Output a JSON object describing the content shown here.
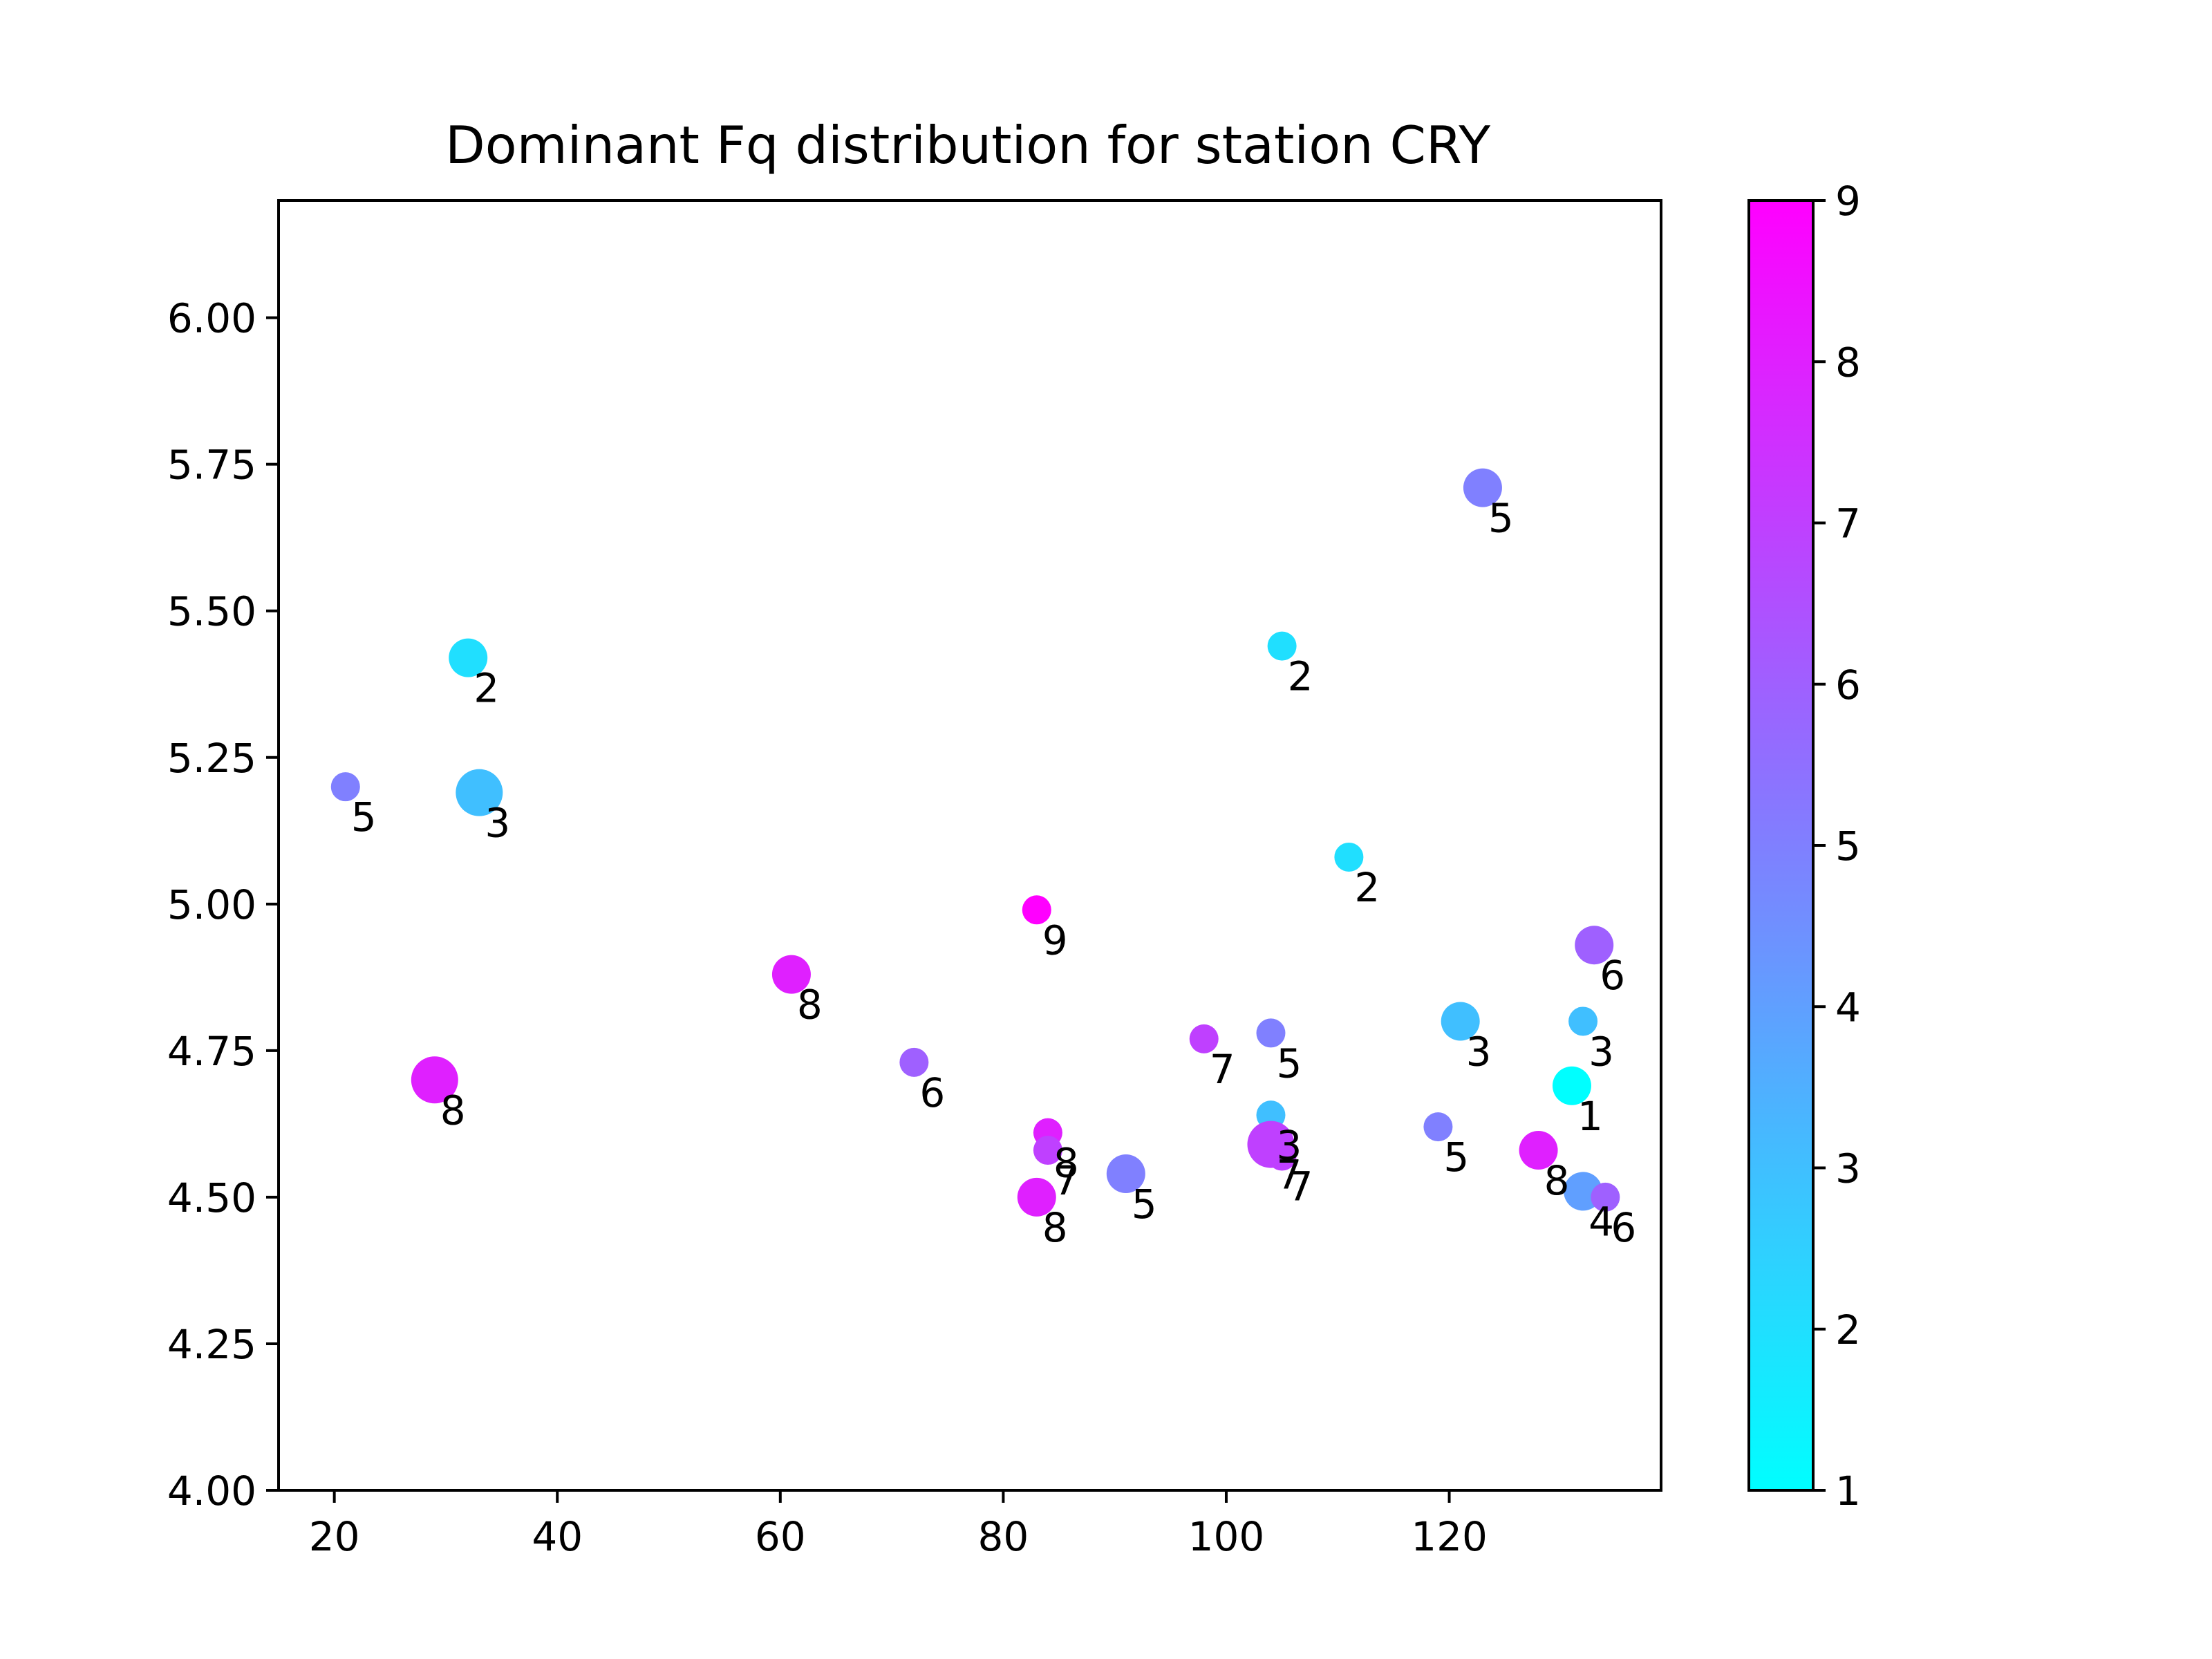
{
  "chart_data": {
    "type": "scatter",
    "title": "Dominant Fq distribution for station CRY",
    "xlabel": "",
    "ylabel": "",
    "xlim": [
      15,
      139
    ],
    "ylim": [
      4.0,
      6.2
    ],
    "xticks": [
      20,
      40,
      60,
      80,
      100,
      120
    ],
    "yticks": [
      4.0,
      4.25,
      4.5,
      4.75,
      5.0,
      5.25,
      5.5,
      5.75,
      6.0
    ],
    "ytick_labels": [
      "4.00",
      "4.25",
      "4.50",
      "4.75",
      "5.00",
      "5.25",
      "5.50",
      "5.75",
      "6.00"
    ],
    "colorbar": {
      "range": [
        1,
        9
      ],
      "ticks": [
        1,
        2,
        3,
        4,
        5,
        6,
        7,
        8,
        9
      ],
      "colormap": "cool",
      "color_low": "#00ffff",
      "color_high": "#ff00ff"
    },
    "points": [
      {
        "x": 123,
        "y": 5.71,
        "value": 5,
        "size": 2
      },
      {
        "x": 32,
        "y": 5.42,
        "value": 2,
        "size": 2
      },
      {
        "x": 105,
        "y": 5.44,
        "value": 2,
        "size": 1
      },
      {
        "x": 21,
        "y": 5.2,
        "value": 5,
        "size": 1
      },
      {
        "x": 33,
        "y": 5.19,
        "value": 3,
        "size": 3
      },
      {
        "x": 111,
        "y": 5.08,
        "value": 2,
        "size": 1
      },
      {
        "x": 83,
        "y": 4.99,
        "value": 9,
        "size": 1
      },
      {
        "x": 133,
        "y": 4.93,
        "value": 6,
        "size": 2
      },
      {
        "x": 61,
        "y": 4.88,
        "value": 8,
        "size": 2
      },
      {
        "x": 121,
        "y": 4.8,
        "value": 3,
        "size": 2
      },
      {
        "x": 132,
        "y": 4.8,
        "value": 3,
        "size": 1
      },
      {
        "x": 104,
        "y": 4.78,
        "value": 5,
        "size": 1
      },
      {
        "x": 98,
        "y": 4.77,
        "value": 7,
        "size": 1
      },
      {
        "x": 72,
        "y": 4.73,
        "value": 6,
        "size": 1
      },
      {
        "x": 29,
        "y": 4.7,
        "value": 8,
        "size": 3
      },
      {
        "x": 131,
        "y": 4.69,
        "value": 1,
        "size": 2
      },
      {
        "x": 104,
        "y": 4.64,
        "value": 3,
        "size": 1
      },
      {
        "x": 119,
        "y": 4.62,
        "value": 5,
        "size": 1
      },
      {
        "x": 84,
        "y": 4.61,
        "value": 8,
        "size": 1
      },
      {
        "x": 104,
        "y": 4.59,
        "value": 7,
        "size": 3
      },
      {
        "x": 84,
        "y": 4.58,
        "value": 7,
        "size": 1
      },
      {
        "x": 128,
        "y": 4.58,
        "value": 8,
        "size": 2
      },
      {
        "x": 105,
        "y": 4.57,
        "value": 7,
        "size": 1
      },
      {
        "x": 91,
        "y": 4.54,
        "value": 5,
        "size": 2
      },
      {
        "x": 132,
        "y": 4.51,
        "value": 4,
        "size": 2
      },
      {
        "x": 83,
        "y": 4.5,
        "value": 8,
        "size": 2
      },
      {
        "x": 134,
        "y": 4.5,
        "value": 6,
        "size": 1
      }
    ]
  }
}
